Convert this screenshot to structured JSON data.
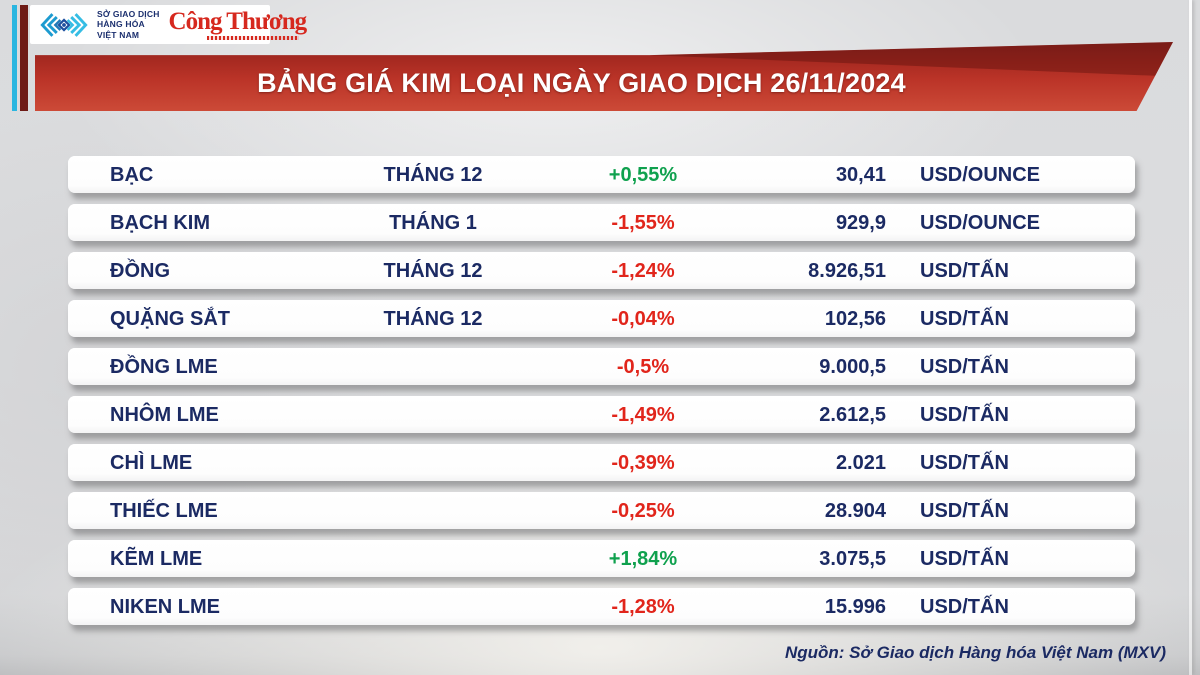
{
  "header": {
    "mxv_logo": {
      "line1": "SỞ GIAO DỊCH",
      "line2": "HÀNG HÓA",
      "line3": "VIỆT NAM"
    },
    "congthuong_label": "Công Thương"
  },
  "banner": {
    "title": "BẢNG GIÁ KIM LOẠI NGÀY GIAO DỊCH 26/11/2024"
  },
  "chart_data": {
    "type": "table",
    "title": "BẢNG GIÁ KIM LOẠI NGÀY GIAO DỊCH 26/11/2024",
    "trading_date": "26/11/2024",
    "rows": [
      {
        "name": "BẠC",
        "month": "THÁNG 12",
        "change": "+0,55%",
        "direction": "up",
        "price": "30,41",
        "unit": "USD/OUNCE"
      },
      {
        "name": "BẠCH KIM",
        "month": "THÁNG 1",
        "change": "-1,55%",
        "direction": "down",
        "price": "929,9",
        "unit": "USD/OUNCE"
      },
      {
        "name": "ĐỒNG",
        "month": "THÁNG 12",
        "change": "-1,24%",
        "direction": "down",
        "price": "8.926,51",
        "unit": "USD/TẤN"
      },
      {
        "name": "QUẶNG SẮT",
        "month": "THÁNG 12",
        "change": "-0,04%",
        "direction": "down",
        "price": "102,56",
        "unit": "USD/TẤN"
      },
      {
        "name": "ĐỒNG LME",
        "month": "",
        "change": "-0,5%",
        "direction": "down",
        "price": "9.000,5",
        "unit": "USD/TẤN"
      },
      {
        "name": "NHÔM LME",
        "month": "",
        "change": "-1,49%",
        "direction": "down",
        "price": "2.612,5",
        "unit": "USD/TẤN"
      },
      {
        "name": "CHÌ LME",
        "month": "",
        "change": "-0,39%",
        "direction": "down",
        "price": "2.021",
        "unit": "USD/TẤN"
      },
      {
        "name": "THIẾC LME",
        "month": "",
        "change": "-0,25%",
        "direction": "down",
        "price": "28.904",
        "unit": "USD/TẤN"
      },
      {
        "name": "KẼM LME",
        "month": "",
        "change": "+1,84%",
        "direction": "up",
        "price": "3.075,5",
        "unit": "USD/TẤN"
      },
      {
        "name": "NIKEN LME",
        "month": "",
        "change": "-1,28%",
        "direction": "down",
        "price": "15.996",
        "unit": "USD/TẤN"
      }
    ]
  },
  "footer": {
    "source": "Nguồn: Sở Giao dịch Hàng hóa Việt Nam (MXV)"
  },
  "colors": {
    "up_green": "#0fa14e",
    "down_red": "#e1251b",
    "text_navy": "#1b2a63",
    "banner_red": "#b12c23",
    "stripe_cyan": "#2ab6e0",
    "stripe_maroon": "#6e1b16",
    "congthuong_red": "#d6281e"
  }
}
